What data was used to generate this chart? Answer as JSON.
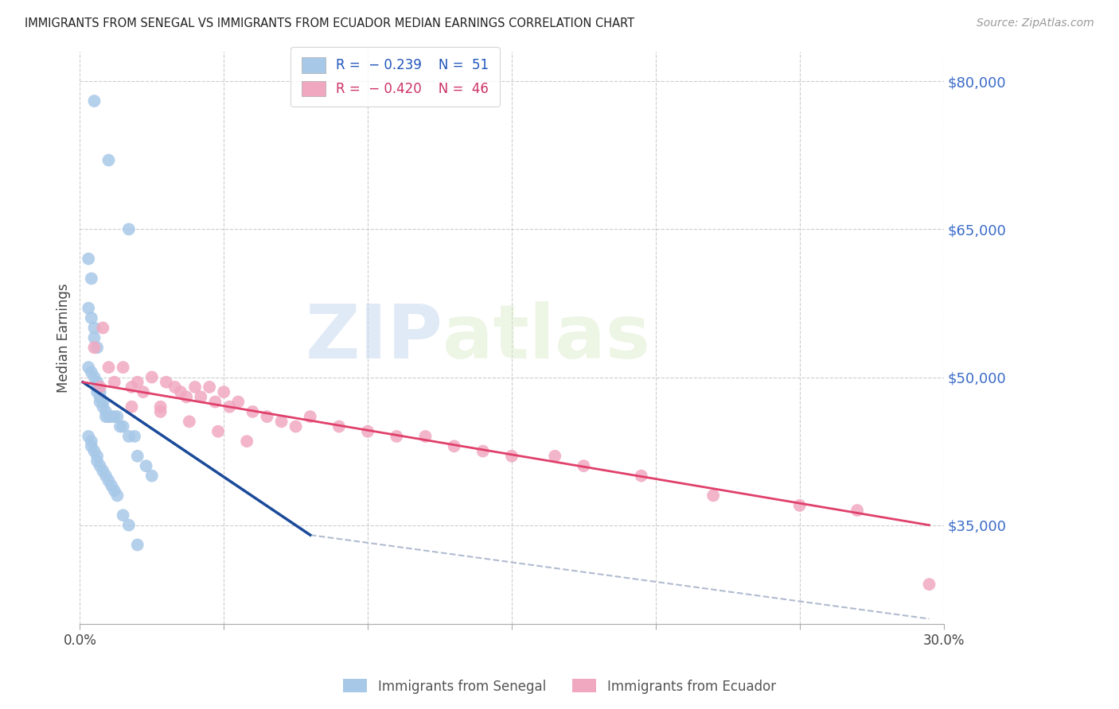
{
  "title": "IMMIGRANTS FROM SENEGAL VS IMMIGRANTS FROM ECUADOR MEDIAN EARNINGS CORRELATION CHART",
  "source": "Source: ZipAtlas.com",
  "ylabel": "Median Earnings",
  "xlim": [
    0.0,
    0.3
  ],
  "ylim": [
    25000,
    83000
  ],
  "yticks": [
    35000,
    50000,
    65000,
    80000
  ],
  "ytick_labels": [
    "$35,000",
    "$50,000",
    "$65,000",
    "$80,000"
  ],
  "xticks": [
    0.0,
    0.05,
    0.1,
    0.15,
    0.2,
    0.25,
    0.3
  ],
  "xtick_labels": [
    "0.0%",
    "",
    "",
    "",
    "",
    "",
    "30.0%"
  ],
  "senegal_color": "#a8c8e8",
  "ecuador_color": "#f0a8c0",
  "line_blue_color": "#1a4a9a",
  "line_pink_color": "#e0406a",
  "line_dash_color": "#b0bcd0",
  "watermark_color": "#d8e8f4",
  "senegal_x": [
    0.005,
    0.01,
    0.017,
    0.003,
    0.004,
    0.003,
    0.004,
    0.005,
    0.005,
    0.006,
    0.003,
    0.004,
    0.005,
    0.006,
    0.006,
    0.006,
    0.007,
    0.007,
    0.007,
    0.008,
    0.008,
    0.009,
    0.009,
    0.01,
    0.01,
    0.011,
    0.012,
    0.013,
    0.014,
    0.015,
    0.017,
    0.019,
    0.02,
    0.023,
    0.025,
    0.003,
    0.004,
    0.004,
    0.005,
    0.006,
    0.006,
    0.007,
    0.008,
    0.009,
    0.01,
    0.011,
    0.012,
    0.013,
    0.015,
    0.017,
    0.02
  ],
  "senegal_y": [
    78000,
    72000,
    65000,
    62000,
    60000,
    57000,
    56000,
    55000,
    54000,
    53000,
    51000,
    50500,
    50000,
    49500,
    49000,
    48500,
    48500,
    48000,
    47500,
    47500,
    47000,
    46500,
    46000,
    46000,
    46000,
    46000,
    46000,
    46000,
    45000,
    45000,
    44000,
    44000,
    42000,
    41000,
    40000,
    44000,
    43500,
    43000,
    42500,
    42000,
    41500,
    41000,
    40500,
    40000,
    39500,
    39000,
    38500,
    38000,
    36000,
    35000,
    33000
  ],
  "ecuador_x": [
    0.005,
    0.007,
    0.008,
    0.01,
    0.012,
    0.015,
    0.018,
    0.02,
    0.022,
    0.025,
    0.028,
    0.03,
    0.033,
    0.035,
    0.037,
    0.04,
    0.042,
    0.045,
    0.047,
    0.05,
    0.052,
    0.055,
    0.06,
    0.065,
    0.07,
    0.075,
    0.08,
    0.09,
    0.1,
    0.11,
    0.12,
    0.13,
    0.14,
    0.15,
    0.165,
    0.175,
    0.195,
    0.22,
    0.25,
    0.27,
    0.295,
    0.018,
    0.028,
    0.038,
    0.048,
    0.058
  ],
  "ecuador_y": [
    53000,
    49000,
    55000,
    51000,
    49500,
    51000,
    49000,
    49500,
    48500,
    50000,
    47000,
    49500,
    49000,
    48500,
    48000,
    49000,
    48000,
    49000,
    47500,
    48500,
    47000,
    47500,
    46500,
    46000,
    45500,
    45000,
    46000,
    45000,
    44500,
    44000,
    44000,
    43000,
    42500,
    42000,
    42000,
    41000,
    40000,
    38000,
    37000,
    36500,
    29000,
    47000,
    46500,
    45500,
    44500,
    43500
  ],
  "blue_line_x0": 0.001,
  "blue_line_y0": 49500,
  "blue_line_x1": 0.08,
  "blue_line_y1": 34000,
  "pink_line_x0": 0.001,
  "pink_line_y0": 49500,
  "pink_line_x1": 0.295,
  "pink_line_y1": 35000,
  "dash_line_x0": 0.08,
  "dash_line_y0": 34000,
  "dash_line_x1": 0.295,
  "dash_line_y1": 25500
}
